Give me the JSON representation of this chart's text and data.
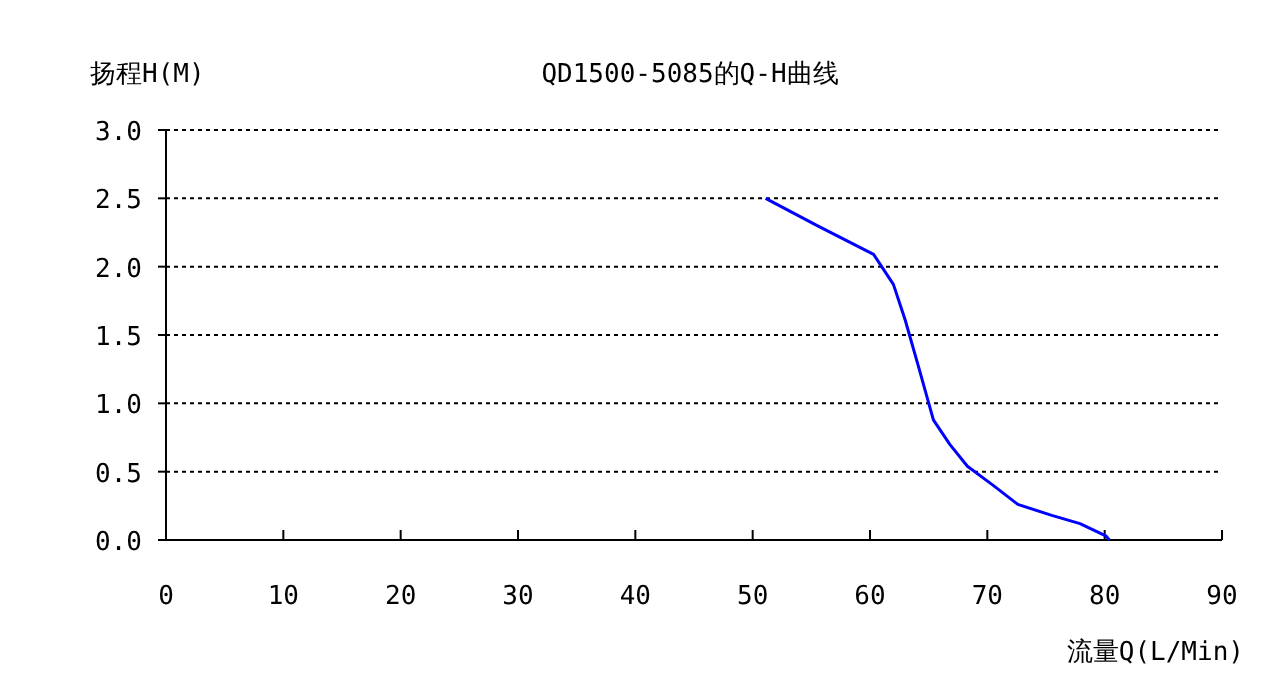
{
  "chart_data": {
    "type": "line",
    "title": "QD1500-5085的Q-H曲线",
    "xlabel": "流量Q(L/Min)",
    "ylabel": "扬程H(M)",
    "xlim": [
      0,
      90
    ],
    "xticks": [
      0,
      10,
      20,
      30,
      40,
      50,
      60,
      70,
      80,
      90
    ],
    "ylim": [
      0,
      3
    ],
    "yticks": [
      {
        "value": 0,
        "label": "0.0"
      },
      {
        "value": 0.5,
        "label": "0.5"
      },
      {
        "value": 1,
        "label": "1.0"
      },
      {
        "value": 1.5,
        "label": "1.5"
      },
      {
        "value": 2,
        "label": "2.0"
      },
      {
        "value": 2.5,
        "label": "2.5"
      },
      {
        "value": 3,
        "label": "3.0"
      }
    ],
    "grid": "y",
    "line_style": "solid",
    "series": [
      {
        "color": "#0000ff",
        "x": [
          51.1,
          55.5,
          60.3,
          62.0,
          63.0,
          64.2,
          65.4,
          66.8,
          68.3,
          70.5,
          72.6,
          75.5,
          77.9,
          80.1,
          80.4
        ],
        "values": [
          2.5,
          2.3,
          2.09,
          1.87,
          1.61,
          1.25,
          0.88,
          0.7,
          0.54,
          0.4,
          0.26,
          0.18,
          0.12,
          0.03,
          0
        ]
      }
    ]
  }
}
